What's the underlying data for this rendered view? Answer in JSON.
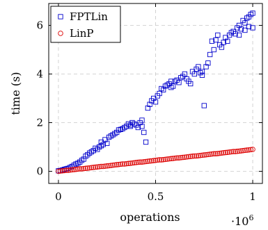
{
  "chart_data": {
    "type": "scatter",
    "title": "",
    "xlabel": "operations",
    "ylabel": "time (s)",
    "x_multiplier_label": "·10",
    "x_multiplier_exponent": "6",
    "xlim": [
      -0.05,
      1.05
    ],
    "ylim": [
      -0.5,
      6.9
    ],
    "xticks": [
      0,
      0.5,
      1
    ],
    "xtick_labels": [
      "0",
      "0.5",
      "1"
    ],
    "yticks": [
      0,
      2,
      4,
      6
    ],
    "ytick_labels": [
      "0",
      "2",
      "4",
      "6"
    ],
    "grid": true,
    "legend_position": "top-left",
    "series": [
      {
        "name": "FPTLin",
        "marker": "square",
        "color": "#0000cc",
        "points": [
          [
            0.0,
            0.02
          ],
          [
            0.01,
            0.03
          ],
          [
            0.02,
            0.05
          ],
          [
            0.03,
            0.08
          ],
          [
            0.04,
            0.1
          ],
          [
            0.05,
            0.12
          ],
          [
            0.06,
            0.16
          ],
          [
            0.07,
            0.2
          ],
          [
            0.08,
            0.25
          ],
          [
            0.09,
            0.3
          ],
          [
            0.1,
            0.33
          ],
          [
            0.11,
            0.38
          ],
          [
            0.12,
            0.45
          ],
          [
            0.13,
            0.5
          ],
          [
            0.14,
            0.62
          ],
          [
            0.15,
            0.68
          ],
          [
            0.16,
            0.75
          ],
          [
            0.17,
            0.8
          ],
          [
            0.18,
            0.85
          ],
          [
            0.19,
            0.95
          ],
          [
            0.2,
            0.9
          ],
          [
            0.21,
            1.0
          ],
          [
            0.22,
            1.05
          ],
          [
            0.23,
            1.1
          ],
          [
            0.24,
            1.3
          ],
          [
            0.25,
            1.15
          ],
          [
            0.26,
            1.4
          ],
          [
            0.27,
            1.45
          ],
          [
            0.28,
            1.5
          ],
          [
            0.29,
            1.55
          ],
          [
            0.3,
            1.6
          ],
          [
            0.31,
            1.7
          ],
          [
            0.32,
            1.72
          ],
          [
            0.33,
            1.75
          ],
          [
            0.34,
            1.8
          ],
          [
            0.35,
            1.85
          ],
          [
            0.36,
            1.95
          ],
          [
            0.37,
            1.9
          ],
          [
            0.38,
            2.0
          ],
          [
            0.39,
            1.95
          ],
          [
            0.4,
            1.9
          ],
          [
            0.41,
            1.8
          ],
          [
            0.42,
            2.0
          ],
          [
            0.43,
            1.85
          ],
          [
            0.44,
            1.6
          ],
          [
            0.45,
            1.2
          ],
          [
            0.46,
            2.6
          ],
          [
            0.47,
            2.75
          ],
          [
            0.48,
            2.9
          ],
          [
            0.49,
            3.0
          ],
          [
            0.5,
            2.85
          ],
          [
            0.51,
            3.1
          ],
          [
            0.52,
            3.2
          ],
          [
            0.53,
            3.4
          ],
          [
            0.54,
            3.35
          ],
          [
            0.55,
            3.5
          ],
          [
            0.56,
            3.55
          ],
          [
            0.57,
            3.6
          ],
          [
            0.58,
            3.7
          ],
          [
            0.59,
            3.5
          ],
          [
            0.6,
            3.7
          ],
          [
            0.61,
            3.75
          ],
          [
            0.62,
            3.65
          ],
          [
            0.63,
            3.85
          ],
          [
            0.64,
            3.9
          ],
          [
            0.65,
            4.0
          ],
          [
            0.66,
            3.8
          ],
          [
            0.67,
            3.7
          ],
          [
            0.68,
            3.6
          ],
          [
            0.69,
            4.1
          ],
          [
            0.7,
            4.0
          ],
          [
            0.71,
            4.2
          ],
          [
            0.72,
            4.3
          ],
          [
            0.73,
            4.05
          ],
          [
            0.74,
            3.95
          ],
          [
            0.75,
            2.7
          ],
          [
            0.76,
            4.3
          ],
          [
            0.77,
            4.45
          ],
          [
            0.78,
            4.8
          ],
          [
            0.79,
            5.35
          ],
          [
            0.8,
            5.0
          ],
          [
            0.81,
            5.4
          ],
          [
            0.82,
            5.6
          ],
          [
            0.83,
            5.2
          ],
          [
            0.84,
            5.1
          ],
          [
            0.85,
            5.3
          ],
          [
            0.86,
            5.5
          ],
          [
            0.87,
            5.35
          ],
          [
            0.88,
            5.6
          ],
          [
            0.89,
            5.7
          ],
          [
            0.9,
            5.75
          ],
          [
            0.91,
            5.65
          ],
          [
            0.92,
            5.9
          ],
          [
            0.93,
            6.0
          ],
          [
            0.94,
            5.85
          ],
          [
            0.95,
            6.2
          ],
          [
            0.96,
            6.1
          ],
          [
            0.97,
            6.3
          ],
          [
            0.98,
            6.35
          ],
          [
            0.99,
            6.45
          ],
          [
            1.0,
            6.5
          ],
          [
            1.0,
            5.9
          ],
          [
            0.98,
            5.95
          ],
          [
            0.96,
            5.8
          ],
          [
            0.93,
            5.6
          ],
          [
            0.74,
            4.1
          ],
          [
            0.58,
            3.45
          ],
          [
            0.43,
            2.1
          ],
          [
            0.37,
            1.85
          ],
          [
            0.22,
            1.2
          ]
        ]
      },
      {
        "name": "LinP",
        "marker": "circle",
        "color": "#dd0000",
        "points": [
          [
            0.0,
            0.0
          ],
          [
            0.01,
            0.01
          ],
          [
            0.02,
            0.02
          ],
          [
            0.03,
            0.03
          ],
          [
            0.04,
            0.04
          ],
          [
            0.05,
            0.04
          ],
          [
            0.06,
            0.05
          ],
          [
            0.07,
            0.06
          ],
          [
            0.08,
            0.07
          ],
          [
            0.09,
            0.08
          ],
          [
            0.1,
            0.09
          ],
          [
            0.11,
            0.1
          ],
          [
            0.12,
            0.1
          ],
          [
            0.13,
            0.11
          ],
          [
            0.14,
            0.12
          ],
          [
            0.15,
            0.13
          ],
          [
            0.16,
            0.14
          ],
          [
            0.17,
            0.15
          ],
          [
            0.18,
            0.16
          ],
          [
            0.19,
            0.17
          ],
          [
            0.2,
            0.18
          ],
          [
            0.21,
            0.19
          ],
          [
            0.22,
            0.2
          ],
          [
            0.23,
            0.2
          ],
          [
            0.24,
            0.21
          ],
          [
            0.25,
            0.22
          ],
          [
            0.26,
            0.23
          ],
          [
            0.27,
            0.24
          ],
          [
            0.28,
            0.25
          ],
          [
            0.29,
            0.26
          ],
          [
            0.3,
            0.27
          ],
          [
            0.31,
            0.28
          ],
          [
            0.32,
            0.29
          ],
          [
            0.33,
            0.3
          ],
          [
            0.34,
            0.3
          ],
          [
            0.35,
            0.31
          ],
          [
            0.36,
            0.32
          ],
          [
            0.37,
            0.33
          ],
          [
            0.38,
            0.34
          ],
          [
            0.39,
            0.35
          ],
          [
            0.4,
            0.36
          ],
          [
            0.41,
            0.37
          ],
          [
            0.42,
            0.38
          ],
          [
            0.43,
            0.38
          ],
          [
            0.44,
            0.39
          ],
          [
            0.45,
            0.4
          ],
          [
            0.46,
            0.41
          ],
          [
            0.47,
            0.42
          ],
          [
            0.48,
            0.43
          ],
          [
            0.49,
            0.44
          ],
          [
            0.5,
            0.45
          ],
          [
            0.51,
            0.46
          ],
          [
            0.52,
            0.47
          ],
          [
            0.53,
            0.47
          ],
          [
            0.54,
            0.48
          ],
          [
            0.55,
            0.49
          ],
          [
            0.56,
            0.5
          ],
          [
            0.57,
            0.51
          ],
          [
            0.58,
            0.52
          ],
          [
            0.59,
            0.53
          ],
          [
            0.6,
            0.54
          ],
          [
            0.61,
            0.55
          ],
          [
            0.62,
            0.55
          ],
          [
            0.63,
            0.56
          ],
          [
            0.64,
            0.57
          ],
          [
            0.65,
            0.58
          ],
          [
            0.66,
            0.59
          ],
          [
            0.67,
            0.6
          ],
          [
            0.68,
            0.61
          ],
          [
            0.69,
            0.62
          ],
          [
            0.7,
            0.63
          ],
          [
            0.71,
            0.63
          ],
          [
            0.72,
            0.64
          ],
          [
            0.73,
            0.65
          ],
          [
            0.74,
            0.66
          ],
          [
            0.75,
            0.67
          ],
          [
            0.76,
            0.68
          ],
          [
            0.77,
            0.69
          ],
          [
            0.78,
            0.7
          ],
          [
            0.79,
            0.71
          ],
          [
            0.8,
            0.72
          ],
          [
            0.81,
            0.72
          ],
          [
            0.82,
            0.73
          ],
          [
            0.83,
            0.74
          ],
          [
            0.84,
            0.75
          ],
          [
            0.85,
            0.76
          ],
          [
            0.86,
            0.77
          ],
          [
            0.87,
            0.78
          ],
          [
            0.88,
            0.79
          ],
          [
            0.89,
            0.8
          ],
          [
            0.9,
            0.81
          ],
          [
            0.91,
            0.81
          ],
          [
            0.92,
            0.82
          ],
          [
            0.93,
            0.83
          ],
          [
            0.94,
            0.84
          ],
          [
            0.95,
            0.85
          ],
          [
            0.96,
            0.86
          ],
          [
            0.97,
            0.87
          ],
          [
            0.98,
            0.88
          ],
          [
            0.99,
            0.89
          ],
          [
            1.0,
            0.9
          ]
        ]
      }
    ]
  }
}
